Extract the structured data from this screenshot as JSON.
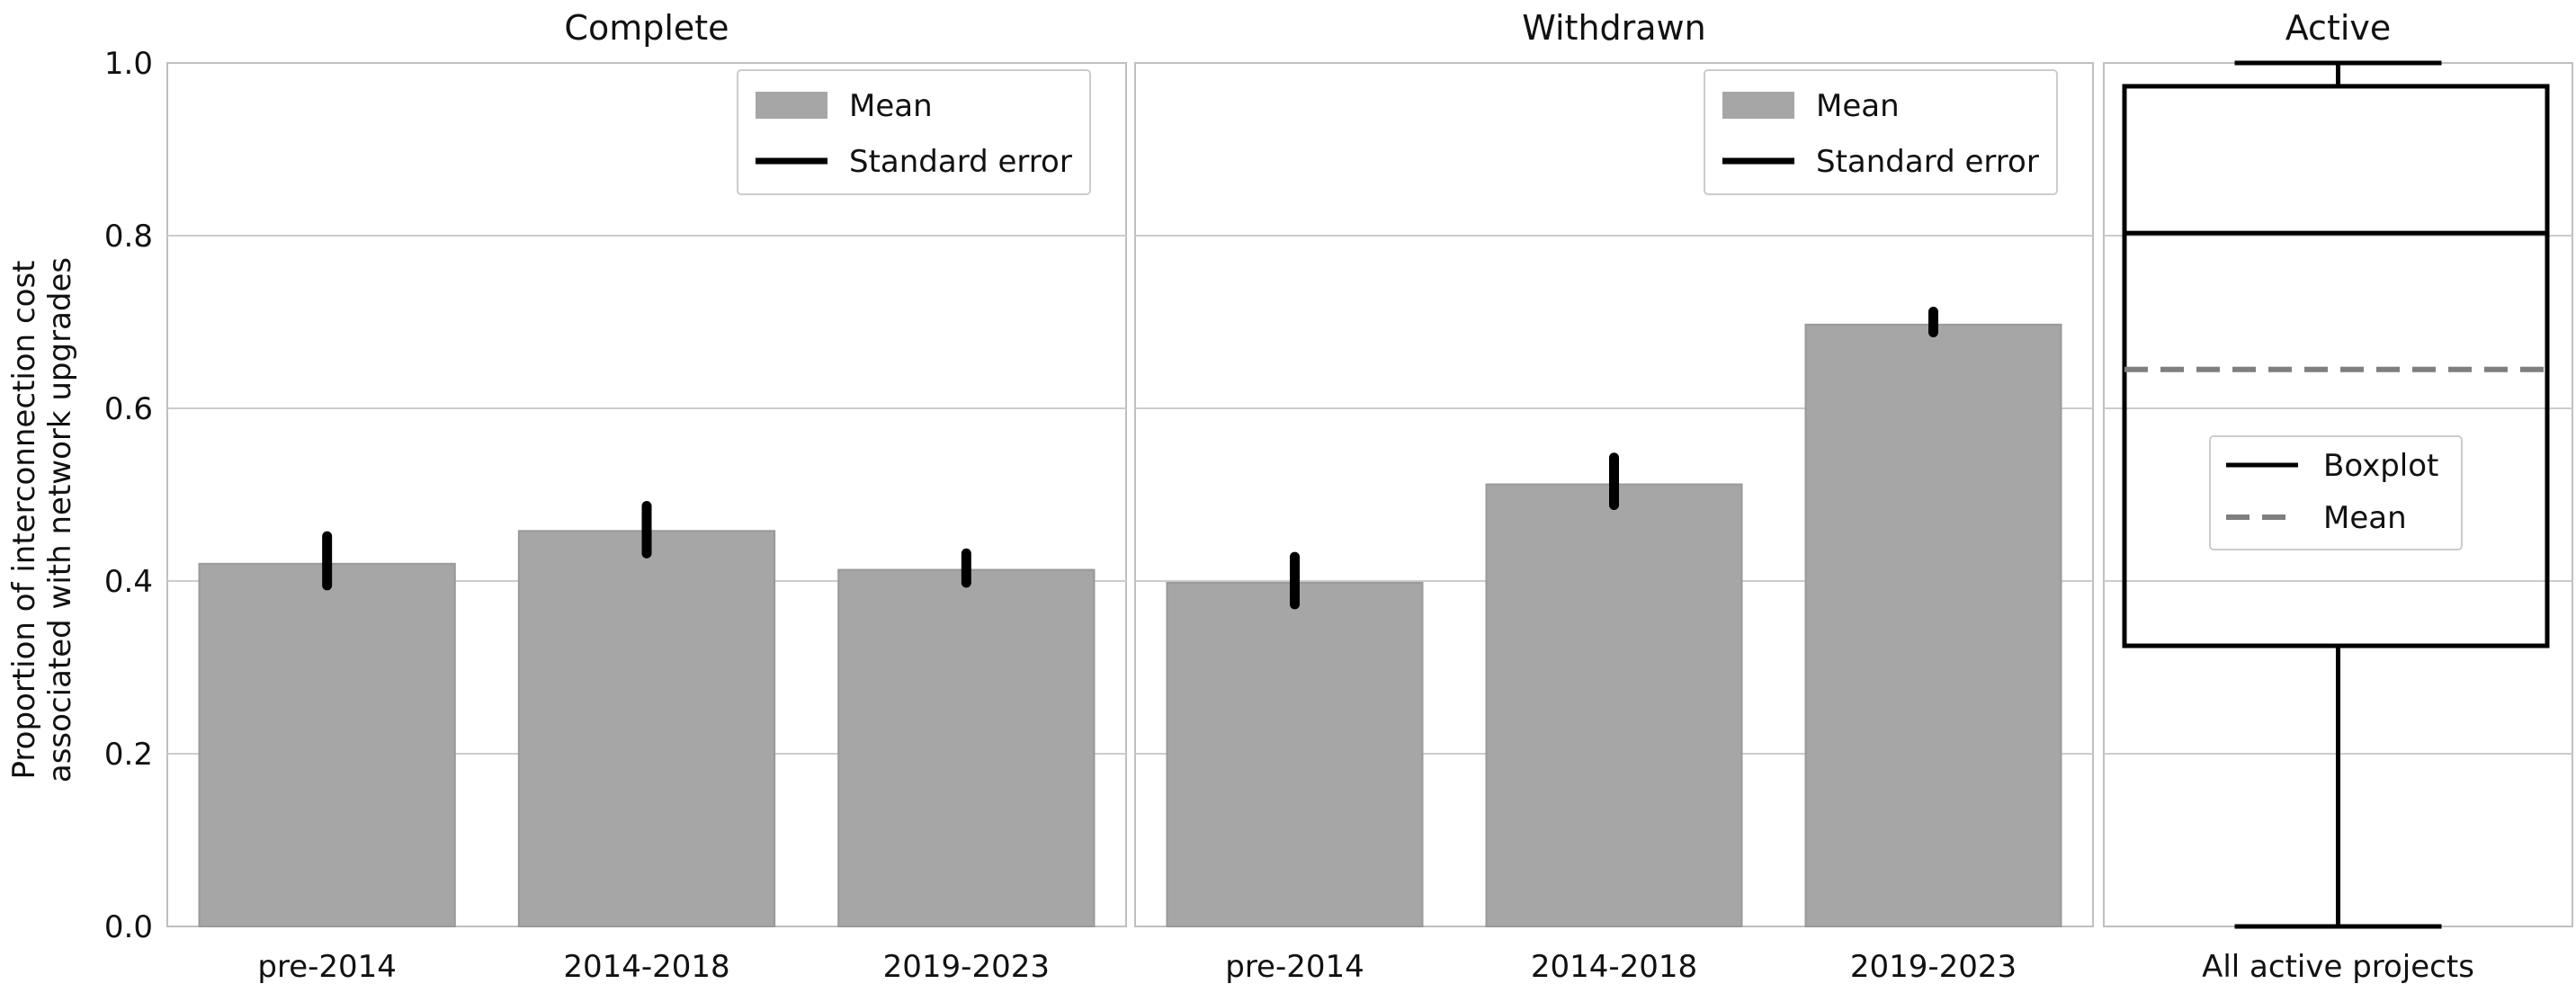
{
  "y_axis": {
    "label_line1": "Proportion of interconnection cost",
    "label_line2": "associated with network upgrades",
    "ticks": [
      "0.0",
      "0.2",
      "0.4",
      "0.6",
      "0.8",
      "1.0"
    ]
  },
  "chart_data": [
    {
      "type": "bar",
      "title": "Complete",
      "categories": [
        "pre-2014",
        "2014-2018",
        "2019-2023"
      ],
      "series": [
        {
          "name": "Mean",
          "values": [
            0.42,
            0.458,
            0.413
          ]
        }
      ],
      "error_bars": {
        "name": "Standard error",
        "low": [
          0.395,
          0.432,
          0.398
        ],
        "high": [
          0.452,
          0.487,
          0.432
        ]
      },
      "ylim": [
        0,
        1
      ],
      "grid": true,
      "legend": "top-right",
      "legend_items": [
        "Mean",
        "Standard error"
      ],
      "colors": {
        "bar": "#a6a6a6",
        "bar_edge": "#999999",
        "error": "#000000"
      }
    },
    {
      "type": "bar",
      "title": "Withdrawn",
      "categories": [
        "pre-2014",
        "2014-2018",
        "2019-2023"
      ],
      "series": [
        {
          "name": "Mean",
          "values": [
            0.398,
            0.512,
            0.697
          ]
        }
      ],
      "error_bars": {
        "name": "Standard error",
        "low": [
          0.373,
          0.488,
          0.688
        ],
        "high": [
          0.428,
          0.543,
          0.712
        ]
      },
      "ylim": [
        0,
        1
      ],
      "grid": true,
      "legend": "top-right",
      "legend_items": [
        "Mean",
        "Standard error"
      ],
      "colors": {
        "bar": "#a6a6a6",
        "bar_edge": "#999999",
        "error": "#000000"
      }
    },
    {
      "type": "boxplot",
      "title": "Active",
      "categories": [
        "All active projects"
      ],
      "box": {
        "whisker_low": 0.0,
        "q1": 0.325,
        "median": 0.803,
        "q3": 0.973,
        "whisker_high": 1.0
      },
      "mean": 0.645,
      "ylim": [
        0,
        1
      ],
      "grid": true,
      "legend": "center",
      "legend_items": [
        "Boxplot",
        "Mean"
      ],
      "colors": {
        "box": "#000000",
        "mean": "#7f7f7f"
      }
    }
  ]
}
